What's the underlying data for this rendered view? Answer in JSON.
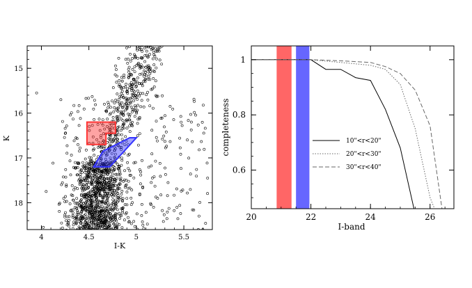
{
  "chart_data": [
    {
      "type": "scatter",
      "xlabel": "I-K",
      "ylabel": "K",
      "xlim": [
        3.85,
        5.8
      ],
      "ylim": [
        18.6,
        14.5
      ],
      "y_inverted": true,
      "xticks": [
        {
          "v": 4,
          "label": "4"
        },
        {
          "v": 4.5,
          "label": "4.5"
        },
        {
          "v": 5,
          "label": "5"
        },
        {
          "v": 5.5,
          "label": "5.5"
        }
      ],
      "yticks": [
        {
          "v": 15,
          "label": "15"
        },
        {
          "v": 16,
          "label": "16"
        },
        {
          "v": 17,
          "label": "17"
        },
        {
          "v": 18,
          "label": "18"
        }
      ],
      "marker": "open-circle",
      "point_count_estimate": 1600,
      "point_distribution": {
        "clump": {
          "x_center": 4.62,
          "y_center": 17.8,
          "note": "dense lower clump"
        },
        "giant_branch": {
          "x_from": 4.55,
          "y_from": 17.2,
          "x_to": 5.1,
          "y_to": 14.6,
          "note": "upper sequence"
        }
      },
      "selection_boxes": [
        {
          "name": "red box",
          "color": "#ff3333",
          "vertices": [
            [
              4.48,
              16.2
            ],
            [
              4.78,
              16.2
            ],
            [
              4.78,
              16.45
            ],
            [
              4.68,
              16.45
            ],
            [
              4.68,
              16.7
            ],
            [
              4.48,
              16.7
            ]
          ]
        },
        {
          "name": "blue box",
          "color": "#3333ff",
          "vertices": [
            [
              4.65,
              16.85
            ],
            [
              4.93,
              16.55
            ],
            [
              5.0,
              16.55
            ],
            [
              4.72,
              17.2
            ],
            [
              4.55,
              17.2
            ]
          ]
        }
      ]
    },
    {
      "type": "line",
      "xlabel": "I-band",
      "ylabel": "completeness",
      "xlim": [
        20,
        26.8
      ],
      "ylim": [
        0.46,
        1.05
      ],
      "xticks": [
        {
          "v": 20,
          "label": "20"
        },
        {
          "v": 22,
          "label": "22"
        },
        {
          "v": 24,
          "label": "24"
        },
        {
          "v": 26,
          "label": "26"
        }
      ],
      "yticks": [
        {
          "v": 0.6,
          "label": "0.6"
        },
        {
          "v": 0.8,
          "label": "0.8"
        },
        {
          "v": 1,
          "label": "1"
        }
      ],
      "bands": [
        {
          "color": "#ff3333",
          "x_range": [
            20.85,
            21.35
          ]
        },
        {
          "color": "#3333ff",
          "x_range": [
            21.5,
            21.95
          ]
        }
      ],
      "legend_position": "center-right",
      "series": [
        {
          "name": "10\"<r<20\"",
          "style": "solid",
          "color": "#666666",
          "x": [
            20.0,
            22.0,
            22.5,
            23.0,
            23.5,
            24.0,
            24.5,
            25.0,
            25.5
          ],
          "y": [
            1.0,
            1.0,
            0.965,
            0.965,
            0.935,
            0.925,
            0.82,
            0.68,
            0.44
          ]
        },
        {
          "name": "20\"<r<30\"",
          "style": "dotted",
          "color": "#666666",
          "x": [
            20.0,
            22.0,
            22.5,
            23.0,
            23.5,
            24.0,
            24.5,
            25.0,
            25.5,
            26.0,
            26.15
          ],
          "y": [
            1.0,
            1.0,
            0.995,
            0.99,
            0.985,
            0.98,
            0.965,
            0.91,
            0.75,
            0.5,
            0.46
          ]
        },
        {
          "name": "30\"<r<40\"",
          "style": "dashed",
          "color": "#666666",
          "x": [
            20.0,
            22.0,
            22.5,
            23.0,
            23.5,
            24.0,
            24.5,
            25.0,
            25.5,
            26.0,
            26.4
          ],
          "y": [
            1.0,
            1.0,
            0.998,
            0.996,
            0.993,
            0.99,
            0.975,
            0.95,
            0.89,
            0.76,
            0.46
          ]
        }
      ]
    }
  ]
}
